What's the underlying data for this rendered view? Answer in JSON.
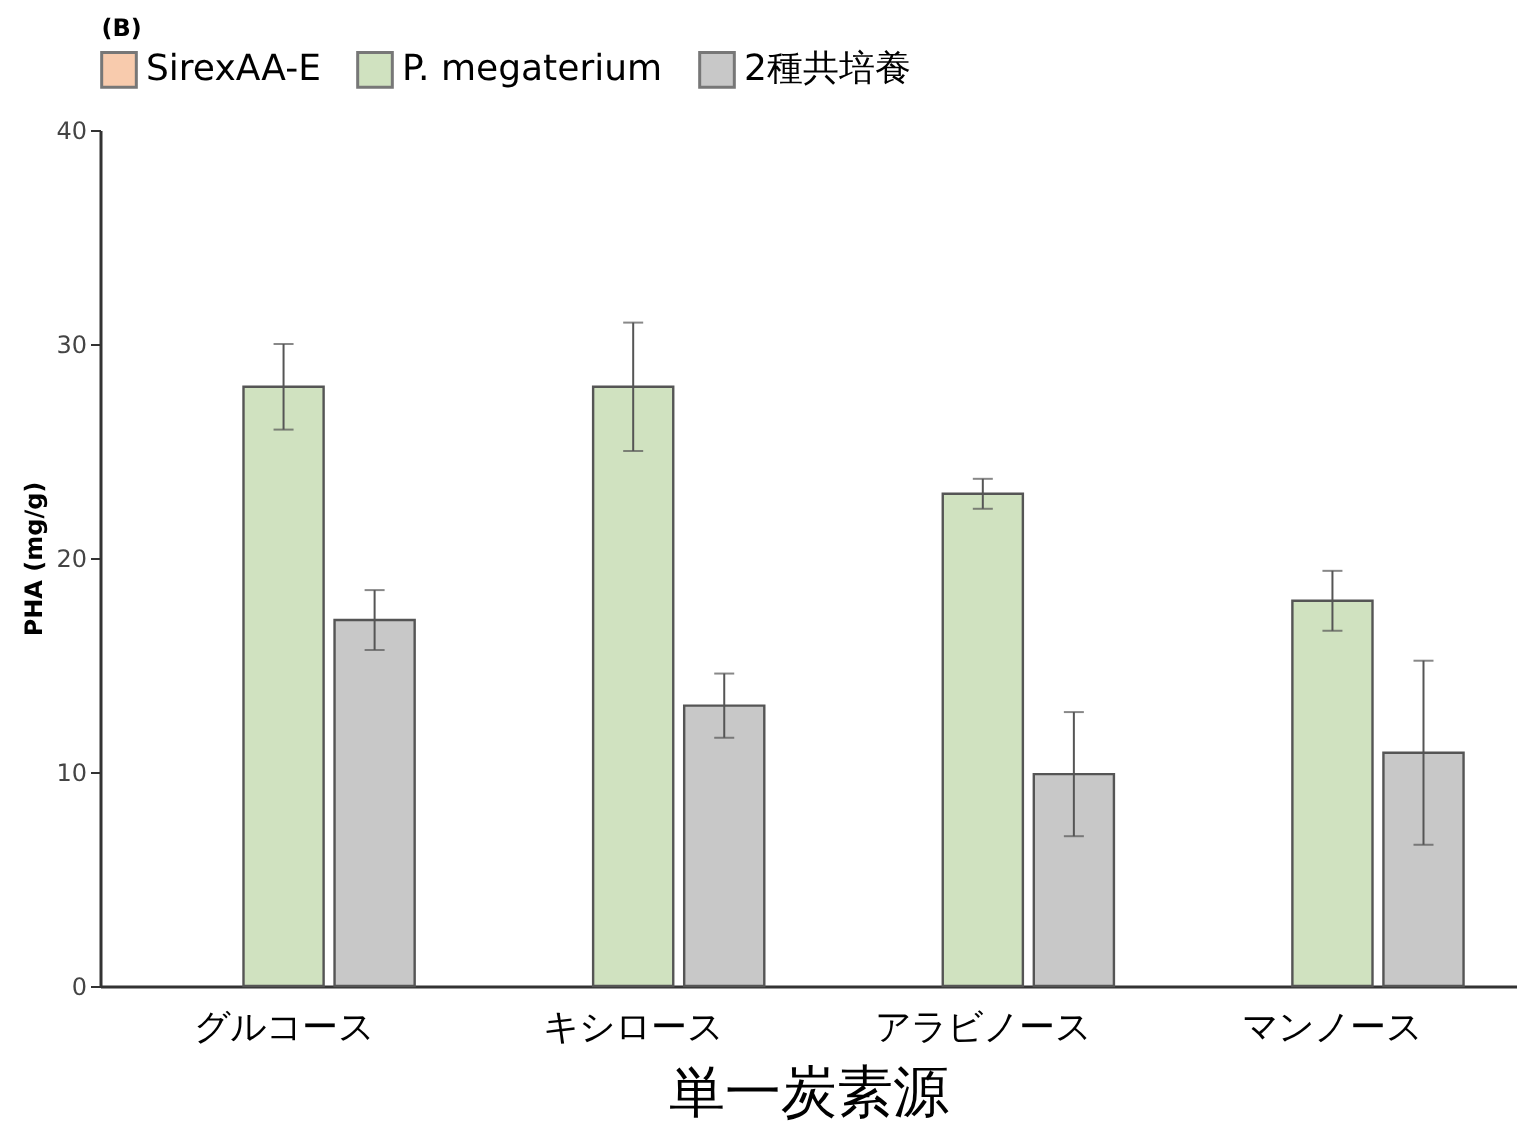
{
  "chart_data": {
    "type": "bar",
    "title": "(B)",
    "xlabel": "単一炭素源",
    "ylabel": "PHA (mg/g)",
    "categories": [
      "グルコース",
      "キシロース",
      "アラビノース",
      "マンノース"
    ],
    "series": [
      {
        "name": "SirexAA-E",
        "color": "#f8cbad",
        "values": [
          null,
          null,
          null,
          null
        ]
      },
      {
        "name": "P. megaterium",
        "color": "#d0e2c0",
        "values": [
          28,
          28,
          23,
          18
        ],
        "errors": [
          2,
          3,
          0.7,
          1.4
        ]
      },
      {
        "name": "2種共培養",
        "color": "#c8c8c8",
        "values": [
          17.1,
          13.1,
          9.9,
          10.9
        ],
        "errors": [
          1.4,
          1.5,
          2.9,
          4.3
        ]
      }
    ],
    "ylim": [
      0,
      40
    ],
    "yticks": [
      0,
      10,
      20,
      30,
      40
    ],
    "grid": false,
    "legend": "top"
  }
}
